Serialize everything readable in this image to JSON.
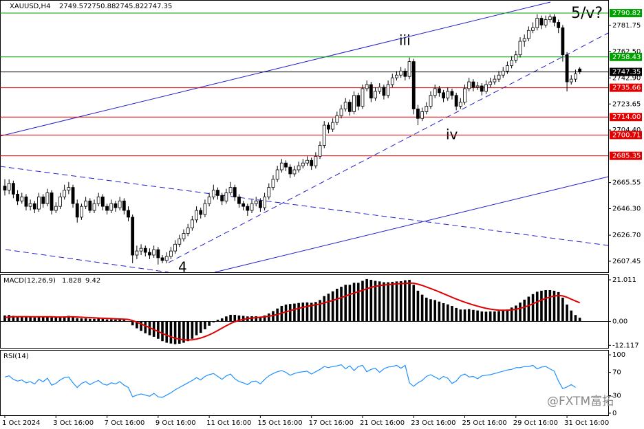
{
  "chart_data": {
    "type": "candlestick",
    "title": "XAUUSD,H4",
    "ylim": [
      2599.3,
      2800.5
    ],
    "yticks": [
      2781.75,
      {
        "value": 2762.5,
        "label": "2762.50"
      },
      {
        "value": 2742.9,
        "label": "2742.90"
      },
      2723.65,
      {
        "value": 2704.4,
        "label": "2704.40"
      },
      2665.55,
      {
        "value": 2646.3,
        "label": "2646.30"
      },
      {
        "value": 2626.7,
        "label": "2626.70"
      },
      2607.45
    ],
    "up_color": "#ffffff",
    "down_color": "#000000",
    "levels": [
      {
        "price": 2790.82,
        "color": "#00a000"
      },
      {
        "price": 2758.43,
        "color": "#00a000"
      },
      {
        "price": 2747.35,
        "color": "#000000"
      },
      {
        "price": 2735.66,
        "color": "#e00000"
      },
      {
        "price": {
          "value": 2714,
          "label": "2714.00"
        },
        "color": "#e00000"
      },
      {
        "price": 2700.71,
        "color": "#e00000"
      },
      {
        "price": 2685.35,
        "color": "#e00000"
      }
    ],
    "annotations": [
      "5/v?",
      "iii",
      "iv",
      "4"
    ],
    "xticks": [
      {
        "value": 0,
        "label": "1 Oct 2024"
      },
      {
        "value": 12,
        "label": "3 Oct 16:00"
      },
      {
        "value": 24,
        "label": "7 Oct 16:00"
      },
      {
        "value": 36,
        "label": "9 Oct 16:00"
      },
      {
        "value": 48,
        "label": "11 Oct 16:00"
      },
      {
        "value": 60,
        "label": "15 Oct 16:00"
      },
      {
        "value": 72,
        "label": "17 Oct 16:00"
      },
      {
        "value": 84,
        "label": "21 Oct 16:00"
      },
      {
        "value": 96,
        "label": "23 Oct 16:00"
      },
      {
        "value": 108,
        "label": "25 Oct 16:00"
      },
      {
        "value": 120,
        "label": "29 Oct 16:00"
      },
      {
        "value": 132,
        "label": "31 Oct 16:00"
      }
    ],
    "candles": [
      [
        2663,
        2668,
        2656,
        2660
      ],
      [
        2660,
        2668,
        2657,
        2665
      ],
      [
        2665,
        2667,
        2654,
        2657
      ],
      [
        2657,
        2660,
        2649,
        2652
      ],
      [
        2652,
        2658,
        2650,
        2655
      ],
      [
        2655,
        2657,
        2645,
        2648
      ],
      [
        2648,
        2653,
        2645,
        2650
      ],
      [
        2650,
        2652,
        2643,
        2646
      ],
      [
        2646,
        2658,
        2644,
        2655
      ],
      [
        2655,
        2657,
        2647,
        2650
      ],
      [
        2650,
        2661,
        2648,
        2658
      ],
      [
        2658,
        2660,
        2642,
        2645
      ],
      [
        2645,
        2651,
        2643,
        2648
      ],
      [
        2648,
        2658,
        2646,
        2655
      ],
      [
        2655,
        2664,
        2653,
        2660
      ],
      [
        2660,
        2666,
        2657,
        2662
      ],
      [
        2662,
        2664,
        2647,
        2650
      ],
      [
        2650,
        2653,
        2636,
        2640
      ],
      [
        2640,
        2650,
        2638,
        2648
      ],
      [
        2648,
        2655,
        2646,
        2652
      ],
      [
        2652,
        2654,
        2643,
        2645
      ],
      [
        2645,
        2653,
        2643,
        2650
      ],
      [
        2650,
        2658,
        2648,
        2655
      ],
      [
        2655,
        2657,
        2645,
        2648
      ],
      [
        2648,
        2650,
        2642,
        2645
      ],
      [
        2645,
        2653,
        2643,
        2650
      ],
      [
        2650,
        2652,
        2644,
        2647
      ],
      [
        2647,
        2655,
        2645,
        2652
      ],
      [
        2652,
        2654,
        2642,
        2645
      ],
      [
        2645,
        2648,
        2637,
        2640
      ],
      [
        2640,
        2642,
        2606,
        2612
      ],
      [
        2612,
        2619,
        2609,
        2615
      ],
      [
        2615,
        2620,
        2612,
        2617
      ],
      [
        2617,
        2619,
        2611,
        2614
      ],
      [
        2614,
        2617,
        2609,
        2612
      ],
      [
        2612,
        2619,
        2610,
        2616
      ],
      [
        2616,
        2618,
        2605,
        2610
      ],
      [
        2610,
        2612,
        2606,
        2608
      ],
      [
        2608,
        2614,
        2606,
        2611
      ],
      [
        2611,
        2618,
        2609,
        2615
      ],
      [
        2615,
        2623,
        2613,
        2620
      ],
      [
        2620,
        2627,
        2618,
        2624
      ],
      [
        2624,
        2631,
        2622,
        2628
      ],
      [
        2628,
        2635,
        2626,
        2632
      ],
      [
        2632,
        2641,
        2630,
        2638
      ],
      [
        2638,
        2648,
        2636,
        2645
      ],
      [
        2645,
        2647,
        2639,
        2642
      ],
      [
        2642,
        2653,
        2640,
        2650
      ],
      [
        2650,
        2658,
        2648,
        2655
      ],
      [
        2655,
        2664,
        2653,
        2660
      ],
      [
        2660,
        2662,
        2653,
        2656
      ],
      [
        2656,
        2658,
        2649,
        2652
      ],
      [
        2652,
        2661,
        2650,
        2658
      ],
      [
        2658,
        2666,
        2656,
        2662
      ],
      [
        2662,
        2664,
        2652,
        2655
      ],
      [
        2655,
        2657,
        2647,
        2650
      ],
      [
        2650,
        2652,
        2645,
        2648
      ],
      [
        2648,
        2650,
        2641,
        2645
      ],
      [
        2645,
        2653,
        2643,
        2650
      ],
      [
        2650,
        2655,
        2648,
        2652
      ],
      [
        2652,
        2654,
        2644,
        2647
      ],
      [
        2647,
        2658,
        2645,
        2655
      ],
      [
        2655,
        2665,
        2653,
        2662
      ],
      [
        2662,
        2671,
        2660,
        2668
      ],
      [
        2668,
        2678,
        2666,
        2675
      ],
      [
        2675,
        2683,
        2673,
        2680
      ],
      [
        2680,
        2682,
        2674,
        2677
      ],
      [
        2677,
        2679,
        2669,
        2672
      ],
      [
        2672,
        2678,
        2670,
        2675
      ],
      [
        2675,
        2681,
        2673,
        2678
      ],
      [
        2678,
        2683,
        2676,
        2680
      ],
      [
        2680,
        2685,
        2678,
        2682
      ],
      [
        2682,
        2684,
        2675,
        2678
      ],
      [
        2678,
        2688,
        2676,
        2685
      ],
      [
        2685,
        2696,
        2683,
        2693
      ],
      [
        2693,
        2711,
        2691,
        2708
      ],
      [
        2708,
        2710,
        2702,
        2705
      ],
      [
        2705,
        2713,
        2703,
        2710
      ],
      [
        2710,
        2718,
        2708,
        2715
      ],
      [
        2715,
        2723,
        2713,
        2720
      ],
      [
        2720,
        2728,
        2718,
        2725
      ],
      [
        2725,
        2727,
        2715,
        2718
      ],
      [
        2718,
        2733,
        2716,
        2730
      ],
      [
        2730,
        2732,
        2719,
        2722
      ],
      [
        2722,
        2738,
        2720,
        2735
      ],
      [
        2735,
        2741,
        2733,
        2738
      ],
      [
        2738,
        2740,
        2725,
        2728
      ],
      [
        2728,
        2736,
        2726,
        2733
      ],
      [
        2733,
        2739,
        2731,
        2736
      ],
      [
        2736,
        2738,
        2727,
        2730
      ],
      [
        2730,
        2741,
        2728,
        2738
      ],
      [
        2738,
        2746,
        2736,
        2743
      ],
      [
        2743,
        2748,
        2741,
        2745
      ],
      [
        2745,
        2751,
        2743,
        2748
      ],
      [
        2748,
        2750,
        2741,
        2744
      ],
      [
        2744,
        2758,
        2742,
        2755
      ],
      [
        2755,
        2757,
        2716,
        2720
      ],
      [
        2720,
        2723,
        2708,
        2713
      ],
      [
        2713,
        2721,
        2711,
        2718
      ],
      [
        2718,
        2725,
        2716,
        2722
      ],
      [
        2722,
        2733,
        2720,
        2730
      ],
      [
        2730,
        2738,
        2728,
        2735
      ],
      [
        2735,
        2737,
        2729,
        2732
      ],
      [
        2732,
        2734,
        2725,
        2728
      ],
      [
        2728,
        2736,
        2726,
        2733
      ],
      [
        2733,
        2735,
        2727,
        2730
      ],
      [
        2730,
        2732,
        2719,
        2722
      ],
      [
        2722,
        2728,
        2720,
        2725
      ],
      [
        2725,
        2738,
        2723,
        2735
      ],
      [
        2735,
        2743,
        2733,
        2740
      ],
      [
        2740,
        2742,
        2733,
        2736
      ],
      [
        2736,
        2740,
        2734,
        2737
      ],
      [
        2737,
        2739,
        2730,
        2733
      ],
      [
        2733,
        2741,
        2731,
        2738
      ],
      [
        2738,
        2743,
        2736,
        2740
      ],
      [
        2740,
        2745,
        2738,
        2742
      ],
      [
        2742,
        2748,
        2740,
        2745
      ],
      [
        2745,
        2751,
        2743,
        2748
      ],
      [
        2748,
        2755,
        2746,
        2752
      ],
      [
        2752,
        2759,
        2750,
        2756
      ],
      [
        2756,
        2763,
        2754,
        2760
      ],
      [
        2760,
        2773,
        2758,
        2770
      ],
      [
        2770,
        2775,
        2766,
        2772
      ],
      [
        2772,
        2781,
        2770,
        2778
      ],
      [
        2778,
        2784,
        2776,
        2780
      ],
      [
        2780,
        2790,
        2778,
        2787
      ],
      [
        2787,
        2789,
        2779,
        2782
      ],
      [
        2782,
        2789,
        2780,
        2786
      ],
      [
        2786,
        2790,
        2784,
        2788
      ],
      [
        2788,
        2790,
        2781,
        2784
      ],
      [
        2784,
        2786,
        2776,
        2780
      ],
      [
        2780,
        2782,
        2755,
        2760
      ],
      [
        2760,
        2762,
        2733,
        2740
      ],
      [
        2740,
        2745,
        2738,
        2742
      ],
      [
        2742,
        2749,
        2740,
        2746
      ],
      [
        2749.57,
        2750.88,
        2745.82,
        2747.35
      ]
    ],
    "macd": {
      "title": "MACD(12,26,9)",
      "ylim": [
        -13.4,
        23.8
      ],
      "yticks": [
        21.011,
        {
          "value": 0,
          "label": "0.00"
        },
        -12.117
      ],
      "hist_color": "#000000",
      "signal_color": "#e00000",
      "histogram": [
        3,
        3.2,
        2.8,
        2.5,
        2.5,
        2.2,
        2.2,
        2,
        2.3,
        2.2,
        2.5,
        2,
        1.9,
        2.1,
        2.5,
        2.8,
        2.4,
        1.6,
        1.5,
        1.5,
        1.3,
        1.3,
        1.5,
        1.3,
        1,
        1,
        0.9,
        1,
        0.7,
        0.2,
        -2,
        -3.5,
        -4.8,
        -6,
        -7,
        -7.8,
        -8.8,
        -10,
        -10.8,
        -11.2,
        -11.5,
        -11.3,
        -10.8,
        -10,
        -8.8,
        -7,
        -5.8,
        -4,
        -2.2,
        -0.5,
        0.8,
        1.5,
        2.5,
        3.3,
        3.3,
        3,
        2.8,
        2.5,
        2.6,
        2.6,
        2.4,
        3,
        4,
        5.2,
        6.5,
        7.8,
        8.5,
        8.8,
        9,
        9.3,
        9.5,
        9.6,
        9.4,
        9.8,
        10.8,
        12.8,
        14,
        15.2,
        16.5,
        17.5,
        18.5,
        18.5,
        19.5,
        19.5,
        20.5,
        21.4,
        21,
        20.5,
        20.2,
        19.8,
        19.8,
        20,
        20.2,
        20.3,
        20.8,
        21,
        18.5,
        15.5,
        13.5,
        12,
        11.2,
        10.8,
        10,
        9.2,
        8.6,
        7.8,
        6.8,
        6,
        6,
        6.2,
        5.8,
        5.5,
        5,
        4.9,
        5,
        5,
        5.2,
        5.5,
        6,
        7,
        8,
        9.5,
        11,
        12.5,
        13.8,
        15,
        15.5,
        15.8,
        15.8,
        15.5,
        14.8,
        12,
        8.5,
        5.5,
        3.2,
        1.828
      ],
      "signal": [
        2,
        2.2,
        2.3,
        2.4,
        2.4,
        2.4,
        2.3,
        2.3,
        2.3,
        2.3,
        2.3,
        2.3,
        2.2,
        2.2,
        2.2,
        2.3,
        2.3,
        2.2,
        2.1,
        2,
        1.9,
        1.8,
        1.7,
        1.6,
        1.5,
        1.4,
        1.3,
        1.2,
        1.1,
        1,
        0.4,
        -0.4,
        -1.3,
        -2.2,
        -3.2,
        -4.1,
        -5.1,
        -6.1,
        -7,
        -7.8,
        -8.5,
        -9,
        -9.3,
        -9.4,
        -9.3,
        -8.9,
        -8.4,
        -7.7,
        -6.8,
        -5.8,
        -4.6,
        -3.4,
        -2.2,
        -1.1,
        -0.2,
        0.5,
        1,
        1.4,
        1.7,
        1.9,
        2.1,
        2.3,
        2.6,
        3,
        3.5,
        4.2,
        4.8,
        5.4,
        6,
        6.6,
        7.1,
        7.6,
        8,
        8.4,
        8.8,
        9.3,
        10,
        10.6,
        11.3,
        12,
        12.8,
        13.6,
        14.3,
        15,
        15.7,
        16.5,
        17.2,
        17.7,
        18.1,
        18.4,
        18.6,
        18.8,
        19,
        19.1,
        19.2,
        19.4,
        19.3,
        18.8,
        18.2,
        17.4,
        16.6,
        15.8,
        14.9,
        14,
        13.1,
        12.2,
        11.3,
        10.5,
        9.7,
        9,
        8.3,
        7.7,
        7.1,
        6.6,
        6.2,
        5.9,
        5.7,
        5.6,
        5.6,
        5.8,
        6.1,
        6.6,
        7.2,
        8,
        8.9,
        9.9,
        10.8,
        11.6,
        12.3,
        12.8,
        13.1,
        12.9,
        12.2,
        11.2,
        10.3,
        9.42
      ]
    },
    "rsi": {
      "title": "RSI(14)",
      "ylim": [
        -3.6,
        108.4
      ],
      "yticks": [
        100,
        70,
        30,
        0
      ],
      "color": "#1e90ff",
      "values": [
        62,
        64,
        58,
        55,
        57,
        52,
        54,
        50,
        58,
        54,
        60,
        48,
        51,
        57,
        61,
        62,
        52,
        44,
        51,
        54,
        49,
        53,
        56,
        50,
        48,
        52,
        50,
        54,
        48,
        44,
        28,
        31,
        33,
        31,
        29,
        34,
        28,
        27,
        31,
        35,
        40,
        44,
        48,
        52,
        56,
        61,
        57,
        63,
        66,
        68,
        63,
        58,
        64,
        67,
        59,
        54,
        52,
        49,
        54,
        55,
        50,
        58,
        64,
        68,
        71,
        73,
        70,
        65,
        68,
        70,
        71,
        72,
        67,
        71,
        75,
        80,
        78,
        80,
        81,
        83,
        76,
        81,
        73,
        80,
        82,
        71,
        75,
        77,
        70,
        76,
        79,
        80,
        82,
        77,
        82,
        52,
        46,
        52,
        56,
        63,
        66,
        62,
        58,
        63,
        60,
        51,
        55,
        64,
        67,
        62,
        63,
        59,
        64,
        65,
        66,
        68,
        70,
        72,
        74,
        75,
        78,
        78,
        80,
        80,
        82,
        76,
        79,
        80,
        76,
        72,
        55,
        42,
        45,
        49,
        44.1482
      ]
    },
    "watermark": "@FXTM富拓"
  }
}
